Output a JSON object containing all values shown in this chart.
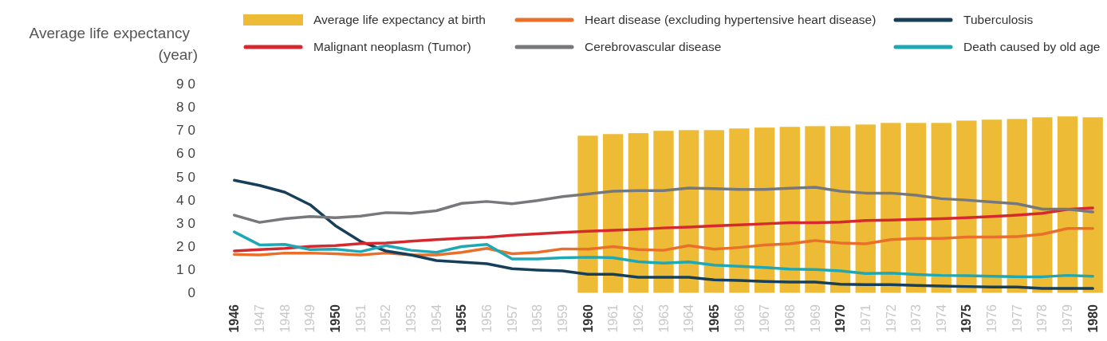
{
  "chart_data": {
    "type": "bar",
    "ylabel": "Average life expectancy (year)",
    "categories": [
      "1946",
      "1947",
      "1948",
      "1949",
      "1950",
      "1951",
      "1952",
      "1953",
      "1954",
      "1955",
      "1956",
      "1957",
      "1958",
      "1959",
      "1960",
      "1961",
      "1962",
      "1963",
      "1964",
      "1965",
      "1966",
      "1967",
      "1968",
      "1969",
      "1970",
      "1971",
      "1972",
      "1973",
      "1974",
      "1975",
      "1976",
      "1977",
      "1978",
      "1979",
      "1980"
    ],
    "ylim": [
      0,
      90
    ],
    "yticks": [
      0,
      10,
      20,
      30,
      40,
      50,
      60,
      70,
      80,
      90
    ],
    "legend": "top",
    "grid": false,
    "series": [
      {
        "name": "Average life expectancy at birth",
        "color": "#edbb35",
        "values": [
          null,
          null,
          null,
          null,
          null,
          null,
          null,
          null,
          null,
          null,
          null,
          null,
          null,
          null,
          67.6,
          68.3,
          68.7,
          69.7,
          70.0,
          70.0,
          70.7,
          71.1,
          71.4,
          71.7,
          71.7,
          72.4,
          73.1,
          73.1,
          73.1,
          74.1,
          74.5,
          74.8,
          75.5,
          75.9,
          75.5
        ]
      },
      {
        "name": "Heart disease (excluding hypertensive heart disease)",
        "type": "line",
        "color": "#e8702a",
        "values": [
          16.5,
          16.3,
          17.1,
          17.1,
          16.8,
          16.3,
          17.1,
          16.3,
          16.3,
          17.4,
          19.1,
          16.8,
          17.4,
          18.9,
          18.8,
          19.9,
          18.6,
          18.3,
          20.3,
          18.8,
          19.5,
          20.6,
          21.1,
          22.5,
          21.4,
          21.1,
          22.9,
          23.4,
          23.4,
          24.0,
          24.0,
          24.2,
          25.2,
          27.7,
          27.7
        ]
      },
      {
        "name": "Tuberculosis",
        "type": "line",
        "color": "#173f5a",
        "values": [
          48.4,
          46.2,
          43.3,
          37.9,
          28.9,
          22.1,
          18.0,
          16.3,
          13.9,
          13.2,
          12.5,
          10.4,
          9.8,
          9.4,
          8.0,
          8.0,
          6.7,
          6.7,
          6.7,
          5.6,
          5.3,
          4.9,
          4.6,
          4.6,
          3.7,
          3.5,
          3.5,
          3.2,
          2.9,
          2.7,
          2.5,
          2.5,
          1.9,
          1.9,
          1.9
        ]
      },
      {
        "name": "Malignant neoplasm (Tumor)",
        "type": "line",
        "color": "#d42a2f",
        "values": [
          18.0,
          18.6,
          19.1,
          20.0,
          20.3,
          21.2,
          21.4,
          22.2,
          22.9,
          23.5,
          23.9,
          24.8,
          25.4,
          26.0,
          26.5,
          26.9,
          27.3,
          27.9,
          28.3,
          28.8,
          29.2,
          29.7,
          30.2,
          30.2,
          30.4,
          31.1,
          31.3,
          31.6,
          31.9,
          32.3,
          32.8,
          33.4,
          34.2,
          35.9,
          36.5
        ]
      },
      {
        "name": "Cerebrovascular disease",
        "type": "line",
        "color": "#77787b",
        "values": [
          33.4,
          30.3,
          31.9,
          32.8,
          32.3,
          33.0,
          34.5,
          34.2,
          35.3,
          38.5,
          39.3,
          38.3,
          39.7,
          41.4,
          42.5,
          43.7,
          44.0,
          44.0,
          45.1,
          44.8,
          44.5,
          44.5,
          45.0,
          45.4,
          43.7,
          42.9,
          42.9,
          42.0,
          40.5,
          39.9,
          39.1,
          38.3,
          36.0,
          36.0,
          34.8
        ]
      },
      {
        "name": "Death caused by old age",
        "type": "line",
        "color": "#1fa8b4",
        "values": [
          26.2,
          20.6,
          20.8,
          18.6,
          18.8,
          17.7,
          20.3,
          18.3,
          17.4,
          19.9,
          20.8,
          14.6,
          14.6,
          15.1,
          15.3,
          15.1,
          13.4,
          12.8,
          13.3,
          11.9,
          11.4,
          10.9,
          10.2,
          10.0,
          9.4,
          8.3,
          8.5,
          7.9,
          7.5,
          7.4,
          7.1,
          6.9,
          6.9,
          7.5,
          7.1
        ]
      }
    ]
  }
}
